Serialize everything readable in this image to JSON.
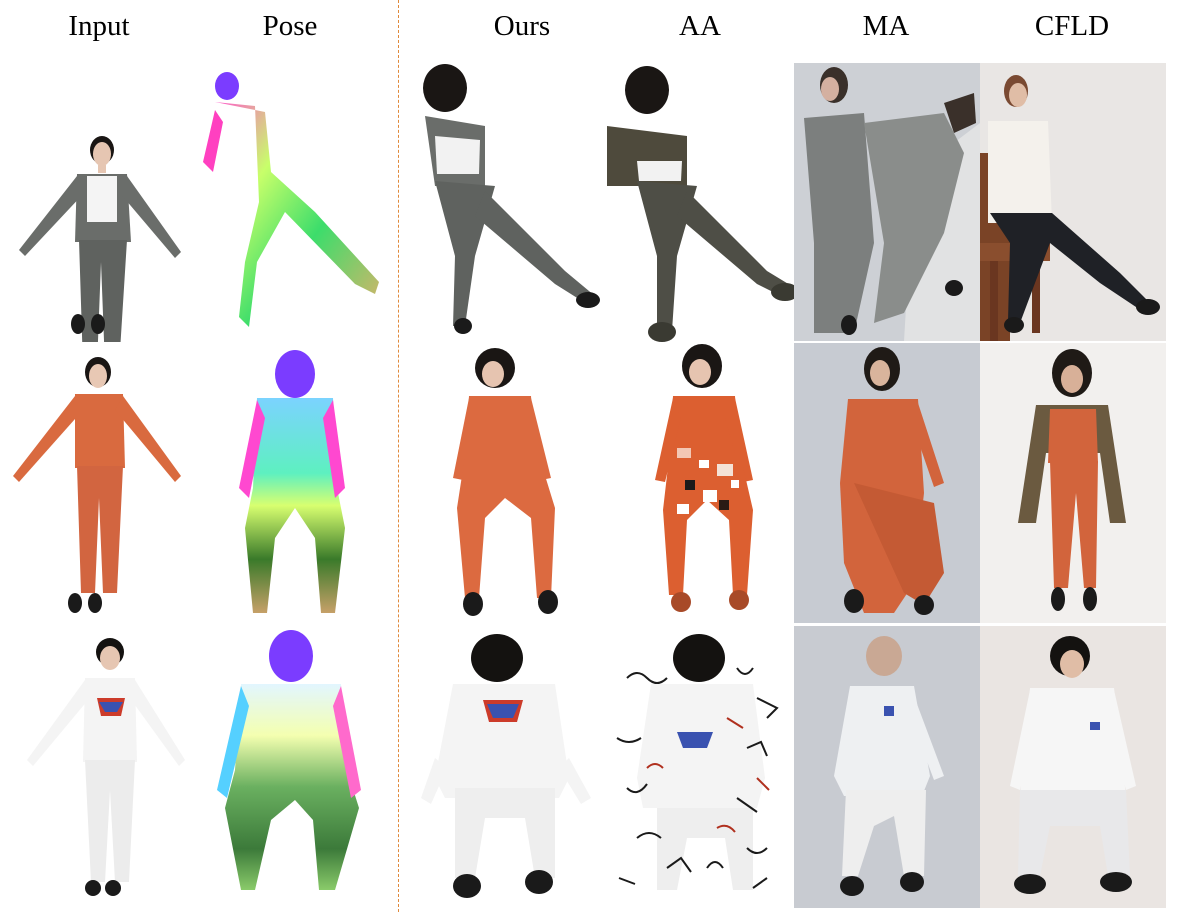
{
  "figure": {
    "columns": [
      {
        "key": "input",
        "label": "Input"
      },
      {
        "key": "pose",
        "label": "Pose"
      },
      {
        "key": "ours",
        "label": "Ours"
      },
      {
        "key": "aa",
        "label": "AA"
      },
      {
        "key": "ma",
        "label": "MA"
      },
      {
        "key": "cfld",
        "label": "CFLD"
      }
    ],
    "rows": [
      {
        "subject": "woman in gray knit top and gray trousers",
        "outfit_color": "#5f625f",
        "top_color": "#f2f2f2",
        "hair_color": "#1a1614"
      },
      {
        "subject": "woman in orange sweatsuit",
        "outfit_color": "#d96a3f",
        "top_color": "#d96a3f",
        "hair_color": "#1a1614"
      },
      {
        "subject": "man in white long-sleeve shirt and white pants",
        "outfit_color": "#ececec",
        "top_color": "#f4f4f4",
        "hair_color": "#141210"
      }
    ],
    "colors": {
      "divider": "#e08a3c",
      "ma_background": "#c9ccd2",
      "cfld_background": "#ece8e4",
      "pose_hue_head": "#7b3cff"
    }
  }
}
